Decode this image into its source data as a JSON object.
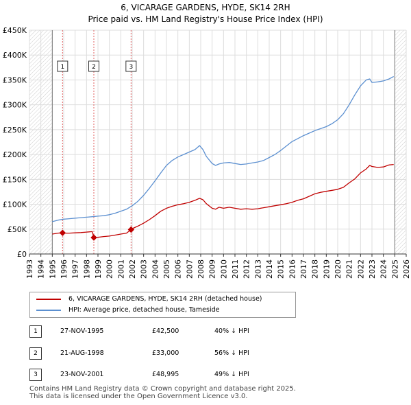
{
  "title_line1": "6, VICARAGE GARDENS, HYDE, SK14 2RH",
  "title_line2": "Price paid vs. HM Land Registry's House Price Index (HPI)",
  "chart_data": {
    "type": "line",
    "title": "6, VICARAGE GARDENS, HYDE, SK14 2RH",
    "subtitle": "Price paid vs. HM Land Registry's House Price Index (HPI)",
    "xlim": [
      1993,
      2026
    ],
    "ylim": [
      0,
      450000
    ],
    "x_ticks": [
      1993,
      1994,
      1995,
      1996,
      1997,
      1998,
      1999,
      2000,
      2001,
      2002,
      2003,
      2004,
      2005,
      2006,
      2007,
      2008,
      2009,
      2010,
      2011,
      2012,
      2013,
      2014,
      2015,
      2016,
      2017,
      2018,
      2019,
      2020,
      2021,
      2022,
      2023,
      2024,
      2025,
      2026
    ],
    "y_ticks": [
      {
        "value": 0,
        "label": "£0"
      },
      {
        "value": 50000,
        "label": "£50K"
      },
      {
        "value": 100000,
        "label": "£100K"
      },
      {
        "value": 150000,
        "label": "£150K"
      },
      {
        "value": 200000,
        "label": "£200K"
      },
      {
        "value": 250000,
        "label": "£250K"
      },
      {
        "value": 300000,
        "label": "£300K"
      },
      {
        "value": 350000,
        "label": "£350K"
      },
      {
        "value": 400000,
        "label": "£400K"
      },
      {
        "value": 450000,
        "label": "£450K"
      }
    ],
    "grid": true,
    "hatched_ranges": [
      [
        1993,
        1995.0
      ],
      [
        2025.0,
        2026
      ]
    ],
    "series": [
      {
        "name": "6, VICARAGE GARDENS, HYDE, SK14 2RH (detached house)",
        "color": "#c00000",
        "x": [
          1995.0,
          1995.5,
          1995.9,
          1996.0,
          1996.5,
          1997.0,
          1997.5,
          1998.0,
          1998.5,
          1998.64,
          1998.7,
          1999.0,
          1999.5,
          2000.0,
          2000.5,
          2001.0,
          2001.5,
          2001.9,
          2002.0,
          2002.5,
          2003.0,
          2003.5,
          2004.0,
          2004.5,
          2005.0,
          2005.5,
          2006.0,
          2006.5,
          2007.0,
          2007.5,
          2007.9,
          2008.2,
          2008.5,
          2009.0,
          2009.3,
          2009.6,
          2010.0,
          2010.5,
          2011.0,
          2011.5,
          2012.0,
          2012.5,
          2013.0,
          2013.5,
          2014.0,
          2014.5,
          2015.0,
          2015.5,
          2016.0,
          2016.5,
          2017.0,
          2017.5,
          2018.0,
          2018.5,
          2019.0,
          2019.5,
          2020.0,
          2020.5,
          2021.0,
          2021.5,
          2022.0,
          2022.5,
          2022.8,
          2023.0,
          2023.5,
          2024.0,
          2024.5,
          2024.9
        ],
        "y": [
          40000,
          42000,
          42500,
          42000,
          42000,
          42500,
          43000,
          44000,
          45000,
          33000,
          32500,
          33500,
          35000,
          36000,
          38000,
          40000,
          42000,
          48995,
          51000,
          56000,
          62000,
          69000,
          77000,
          86000,
          92000,
          96000,
          99000,
          101000,
          104000,
          108000,
          112000,
          109000,
          101000,
          92000,
          90000,
          94000,
          92000,
          94000,
          92000,
          90000,
          91000,
          90000,
          91000,
          93000,
          95000,
          97000,
          99000,
          101000,
          104000,
          108000,
          111000,
          116000,
          121000,
          124000,
          126000,
          128000,
          130000,
          134000,
          143000,
          151000,
          163000,
          171000,
          178000,
          176000,
          174000,
          175000,
          179000,
          180000
        ]
      },
      {
        "name": "HPI: Average price, detached house, Tameside",
        "color": "#5b8fd0",
        "x": [
          1995.0,
          1995.5,
          1996.0,
          1996.5,
          1997.0,
          1997.5,
          1998.0,
          1998.5,
          1999.0,
          1999.5,
          2000.0,
          2000.5,
          2001.0,
          2001.5,
          2002.0,
          2002.5,
          2003.0,
          2003.5,
          2004.0,
          2004.5,
          2005.0,
          2005.5,
          2006.0,
          2006.5,
          2007.0,
          2007.5,
          2007.9,
          2008.2,
          2008.5,
          2009.0,
          2009.3,
          2009.6,
          2010.0,
          2010.5,
          2011.0,
          2011.5,
          2012.0,
          2012.5,
          2013.0,
          2013.5,
          2014.0,
          2014.5,
          2015.0,
          2015.5,
          2016.0,
          2016.5,
          2017.0,
          2017.5,
          2018.0,
          2018.5,
          2019.0,
          2019.5,
          2020.0,
          2020.5,
          2021.0,
          2021.5,
          2022.0,
          2022.5,
          2022.8,
          2023.0,
          2023.5,
          2024.0,
          2024.5,
          2024.9
        ],
        "y": [
          65000,
          68000,
          70000,
          71000,
          72000,
          73000,
          74000,
          75000,
          76000,
          77000,
          79000,
          82000,
          86000,
          90000,
          97000,
          106000,
          118000,
          132000,
          147000,
          163000,
          178000,
          188000,
          195000,
          200000,
          205000,
          210000,
          218000,
          210000,
          196000,
          182000,
          178000,
          181000,
          183000,
          184000,
          182000,
          180000,
          181000,
          183000,
          185000,
          188000,
          194000,
          200000,
          208000,
          217000,
          226000,
          232000,
          238000,
          243000,
          248000,
          252000,
          256000,
          262000,
          270000,
          282000,
          300000,
          320000,
          338000,
          350000,
          352000,
          345000,
          346000,
          348000,
          352000,
          357000
        ]
      }
    ],
    "sale_markers": [
      {
        "label": "1",
        "x": 1995.9,
        "y": 42500
      },
      {
        "label": "2",
        "x": 1998.64,
        "y": 33000
      },
      {
        "label": "3",
        "x": 2001.9,
        "y": 48995
      }
    ]
  },
  "legend": {
    "property_label": "6, VICARAGE GARDENS, HYDE, SK14 2RH (detached house)",
    "hpi_label": "HPI: Average price, detached house, Tameside"
  },
  "transactions": [
    {
      "num": "1",
      "date": "27-NOV-1995",
      "price": "£42,500",
      "hpi": "40% ↓ HPI"
    },
    {
      "num": "2",
      "date": "21-AUG-1998",
      "price": "£33,000",
      "hpi": "56% ↓ HPI"
    },
    {
      "num": "3",
      "date": "23-NOV-2001",
      "price": "£48,995",
      "hpi": "49% ↓ HPI"
    }
  ],
  "footer": {
    "line1": "Contains HM Land Registry data © Crown copyright and database right 2025.",
    "line2": "This data is licensed under the Open Government Licence v3.0."
  },
  "colors": {
    "property": "#c00000",
    "hpi": "#5b8fd0",
    "grid": "#dddddd"
  }
}
